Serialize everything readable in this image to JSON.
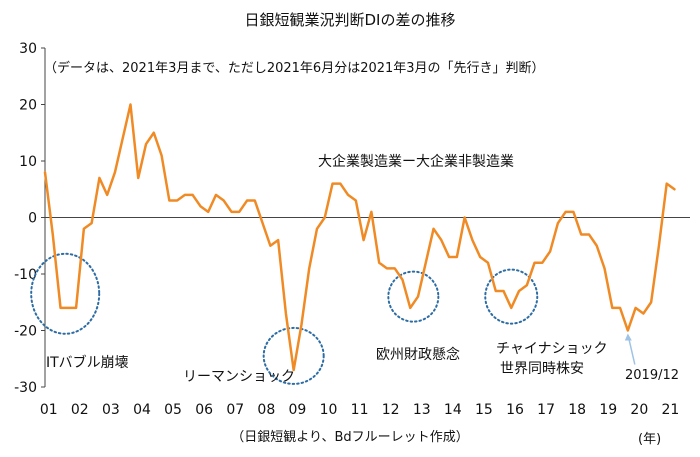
{
  "chart_data": {
    "type": "line",
    "title": "日銀短観業況判断DIの差の推移",
    "subtitle": "（データは、2021年3月まで、ただし2021年6月分は2021年3月の「先行き」判断）",
    "series_label": "大企業製造業ー大企業非製造業",
    "xlabel": "（日銀短観より、Bdフルーレット作成）",
    "xunit": "(年)",
    "ylim": [
      -30,
      30
    ],
    "yticks": [
      30,
      20,
      10,
      0,
      -10,
      -20,
      -30
    ],
    "xlim": [
      2001.0,
      2021.75
    ],
    "xtick_labels": [
      "01",
      "02",
      "03",
      "04",
      "05",
      "06",
      "07",
      "08",
      "09",
      "10",
      "11",
      "12",
      "13",
      "14",
      "15",
      "16",
      "17",
      "18",
      "19",
      "20",
      "21"
    ],
    "grid": false,
    "line_color": "#F08A24",
    "annotations": [
      {
        "label": "ITバブル崩壊",
        "x": 2001.65,
        "y": -13.5
      },
      {
        "label": "リーマンショック",
        "x": 2009.0,
        "y": -24.5
      },
      {
        "label": "欧州財政懸念",
        "x": 2012.85,
        "y": -14.0
      },
      {
        "label": "チャイナショック",
        "label2": "世界同時株安",
        "x": 2016.0,
        "y": -14.0
      },
      {
        "label": "2019/12",
        "x": 2019.75,
        "y": -20.0
      }
    ],
    "series": [
      {
        "name": "大企業製造業ー大企業非製造業",
        "x_start": 2001.0,
        "step": 0.25,
        "values": [
          8,
          -3,
          -16,
          -16,
          -16,
          -2,
          -1,
          7,
          4,
          8,
          14,
          20,
          7,
          13,
          15,
          11,
          3,
          3,
          4,
          4,
          2,
          1,
          4,
          3,
          1,
          1,
          3,
          3,
          -1,
          -5,
          -4,
          -17,
          -27,
          -19,
          -9,
          -2,
          0,
          6,
          6,
          4,
          3,
          -4,
          1,
          -8,
          -9,
          -9,
          -11,
          -16,
          -14,
          -8,
          -2,
          -4,
          -7,
          -7,
          0,
          -4,
          -7,
          -8,
          -13,
          -13,
          -16,
          -13,
          -12,
          -8,
          -8,
          -6,
          -1,
          1,
          1,
          -3,
          -3,
          -5,
          -9,
          -16,
          -16,
          -20,
          -16,
          -17,
          -15,
          -5,
          6,
          5
        ]
      }
    ]
  }
}
